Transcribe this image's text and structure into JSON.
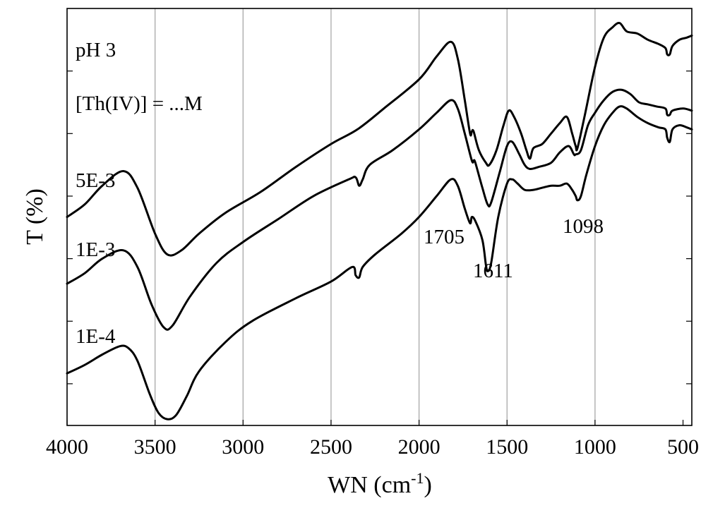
{
  "chart_data": {
    "type": "line",
    "xlabel": "WN (cm",
    "xlabel_sup": "-1",
    "xlabel_tail": ")",
    "ylabel": "T (%)",
    "xlim": [
      4000,
      450
    ],
    "x_reversed": true,
    "x_ticks": [
      4000,
      3500,
      3000,
      2500,
      2000,
      1500,
      1000,
      500
    ],
    "x_tick_labels": [
      "4000",
      "3500",
      "3000",
      "2500",
      "2000",
      "1500",
      "1000",
      "500"
    ],
    "ylim": [
      0,
      100
    ],
    "y_ticks": [
      10,
      25,
      40,
      55,
      70,
      85
    ],
    "y_tick_labels_shown": false,
    "grid": "vertical",
    "annotations": [
      "pH 3",
      "[Th(IV)] = ...M"
    ],
    "peak_labels": [
      "1705",
      "1611",
      "1098"
    ],
    "series": [
      {
        "name": "5E-3",
        "points": [
          [
            4000,
            50
          ],
          [
            3900,
            53
          ],
          [
            3800,
            57.5
          ],
          [
            3680,
            61
          ],
          [
            3600,
            57
          ],
          [
            3500,
            46
          ],
          [
            3430,
            41
          ],
          [
            3350,
            42
          ],
          [
            3250,
            46
          ],
          [
            3100,
            51
          ],
          [
            2900,
            56
          ],
          [
            2700,
            62
          ],
          [
            2500,
            67.5
          ],
          [
            2350,
            71
          ],
          [
            2200,
            76
          ],
          [
            2000,
            83
          ],
          [
            1900,
            88.5
          ],
          [
            1820,
            92
          ],
          [
            1780,
            88
          ],
          [
            1740,
            78
          ],
          [
            1710,
            70
          ],
          [
            1700,
            70.5
          ],
          [
            1690,
            70.5
          ],
          [
            1660,
            66
          ],
          [
            1620,
            63
          ],
          [
            1600,
            62.5
          ],
          [
            1560,
            66
          ],
          [
            1520,
            72
          ],
          [
            1490,
            75.5
          ],
          [
            1460,
            74
          ],
          [
            1420,
            70
          ],
          [
            1390,
            66
          ],
          [
            1370,
            64
          ],
          [
            1350,
            66.5
          ],
          [
            1300,
            67.5
          ],
          [
            1250,
            70
          ],
          [
            1200,
            72.5
          ],
          [
            1160,
            74
          ],
          [
            1130,
            70
          ],
          [
            1110,
            67
          ],
          [
            1100,
            66.5
          ],
          [
            1060,
            74
          ],
          [
            1000,
            86
          ],
          [
            950,
            93
          ],
          [
            900,
            95.5
          ],
          [
            860,
            96.5
          ],
          [
            820,
            94.5
          ],
          [
            760,
            94
          ],
          [
            700,
            92.5
          ],
          [
            640,
            91.5
          ],
          [
            600,
            90.5
          ],
          [
            590,
            89
          ],
          [
            575,
            89
          ],
          [
            560,
            91
          ],
          [
            520,
            92.5
          ],
          [
            480,
            93
          ],
          [
            450,
            93.5
          ]
        ]
      },
      {
        "name": "1E-3",
        "points": [
          [
            4000,
            34
          ],
          [
            3900,
            36.5
          ],
          [
            3800,
            40
          ],
          [
            3680,
            42
          ],
          [
            3600,
            38
          ],
          [
            3520,
            29
          ],
          [
            3450,
            23.5
          ],
          [
            3400,
            24
          ],
          [
            3300,
            31
          ],
          [
            3150,
            39
          ],
          [
            3000,
            44
          ],
          [
            2800,
            49.5
          ],
          [
            2600,
            55
          ],
          [
            2400,
            59
          ],
          [
            2360,
            59.5
          ],
          [
            2340,
            57.5
          ],
          [
            2320,
            59
          ],
          [
            2280,
            62.5
          ],
          [
            2150,
            66
          ],
          [
            2000,
            71
          ],
          [
            1900,
            75
          ],
          [
            1820,
            78
          ],
          [
            1780,
            76
          ],
          [
            1740,
            70
          ],
          [
            1700,
            63.5
          ],
          [
            1690,
            63.5
          ],
          [
            1680,
            63
          ],
          [
            1640,
            57
          ],
          [
            1610,
            53
          ],
          [
            1590,
            53.5
          ],
          [
            1540,
            61
          ],
          [
            1500,
            67
          ],
          [
            1470,
            68
          ],
          [
            1430,
            65
          ],
          [
            1400,
            62.5
          ],
          [
            1370,
            61.5
          ],
          [
            1320,
            62
          ],
          [
            1250,
            63
          ],
          [
            1200,
            65.5
          ],
          [
            1150,
            67
          ],
          [
            1120,
            65
          ],
          [
            1110,
            65
          ],
          [
            1080,
            66
          ],
          [
            1040,
            72
          ],
          [
            1000,
            75
          ],
          [
            950,
            78
          ],
          [
            900,
            80
          ],
          [
            850,
            80.5
          ],
          [
            800,
            79.5
          ],
          [
            750,
            77.5
          ],
          [
            700,
            77
          ],
          [
            650,
            76.5
          ],
          [
            600,
            76
          ],
          [
            590,
            74.5
          ],
          [
            575,
            74.5
          ],
          [
            560,
            75.5
          ],
          [
            500,
            76
          ],
          [
            450,
            75.5
          ]
        ]
      },
      {
        "name": "1E-4",
        "points": [
          [
            4000,
            12.5
          ],
          [
            3900,
            14.5
          ],
          [
            3800,
            17
          ],
          [
            3700,
            19
          ],
          [
            3650,
            18.5
          ],
          [
            3600,
            15.5
          ],
          [
            3530,
            7.5
          ],
          [
            3480,
            3
          ],
          [
            3430,
            1.5
          ],
          [
            3380,
            2.5
          ],
          [
            3320,
            7
          ],
          [
            3250,
            13
          ],
          [
            3100,
            20
          ],
          [
            2950,
            25
          ],
          [
            2700,
            30.5
          ],
          [
            2500,
            34.5
          ],
          [
            2380,
            38
          ],
          [
            2360,
            36
          ],
          [
            2340,
            35.5
          ],
          [
            2320,
            38
          ],
          [
            2250,
            41
          ],
          [
            2100,
            46
          ],
          [
            2000,
            50
          ],
          [
            1900,
            55
          ],
          [
            1820,
            59
          ],
          [
            1780,
            57.5
          ],
          [
            1740,
            52
          ],
          [
            1710,
            48.5
          ],
          [
            1700,
            50
          ],
          [
            1680,
            49
          ],
          [
            1640,
            44.5
          ],
          [
            1620,
            38.5
          ],
          [
            1610,
            37
          ],
          [
            1590,
            39
          ],
          [
            1550,
            50
          ],
          [
            1500,
            58
          ],
          [
            1470,
            59
          ],
          [
            1440,
            58
          ],
          [
            1400,
            56.5
          ],
          [
            1350,
            56.5
          ],
          [
            1300,
            57
          ],
          [
            1250,
            57.5
          ],
          [
            1200,
            57.5
          ],
          [
            1160,
            58
          ],
          [
            1130,
            56.5
          ],
          [
            1110,
            55
          ],
          [
            1100,
            54
          ],
          [
            1080,
            55
          ],
          [
            1050,
            60
          ],
          [
            1000,
            67
          ],
          [
            950,
            72
          ],
          [
            900,
            75
          ],
          [
            860,
            76.5
          ],
          [
            820,
            76
          ],
          [
            760,
            74
          ],
          [
            700,
            72.5
          ],
          [
            640,
            71.5
          ],
          [
            600,
            71
          ],
          [
            590,
            69
          ],
          [
            575,
            68
          ],
          [
            560,
            71
          ],
          [
            520,
            72
          ],
          [
            480,
            71.5
          ],
          [
            450,
            71
          ]
        ]
      }
    ]
  }
}
